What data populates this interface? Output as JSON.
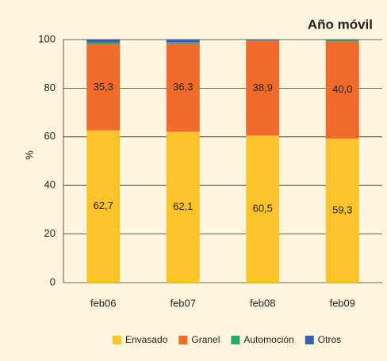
{
  "chart_data": {
    "type": "stacked_bar",
    "title": "Año móvil",
    "y_label": "%",
    "categories": [
      "feb06",
      "feb07",
      "feb08",
      "feb09"
    ],
    "series": [
      {
        "name": "Envasado",
        "color": "#fcc42a",
        "values": [
          62.7,
          62.1,
          60.5,
          59.3
        ],
        "value_labels": [
          "62,7",
          "62,1",
          "60,5",
          "59,3"
        ]
      },
      {
        "name": "Granel",
        "color": "#f06a2a",
        "values": [
          35.3,
          36.3,
          38.9,
          40.0
        ],
        "value_labels": [
          "35,3",
          "36,3",
          "38,9",
          "40,0"
        ]
      },
      {
        "name": "Automoción",
        "color": "#2aa86a",
        "values": [
          0.8,
          0.6,
          0.4,
          0.6
        ]
      },
      {
        "name": "Otros",
        "color": "#3a5fb0",
        "values": [
          1.2,
          1.0,
          0.2,
          0.1
        ]
      }
    ],
    "ylim": [
      0,
      100
    ],
    "yticks": [
      0,
      20,
      40,
      60,
      80,
      100
    ],
    "grid": true
  }
}
